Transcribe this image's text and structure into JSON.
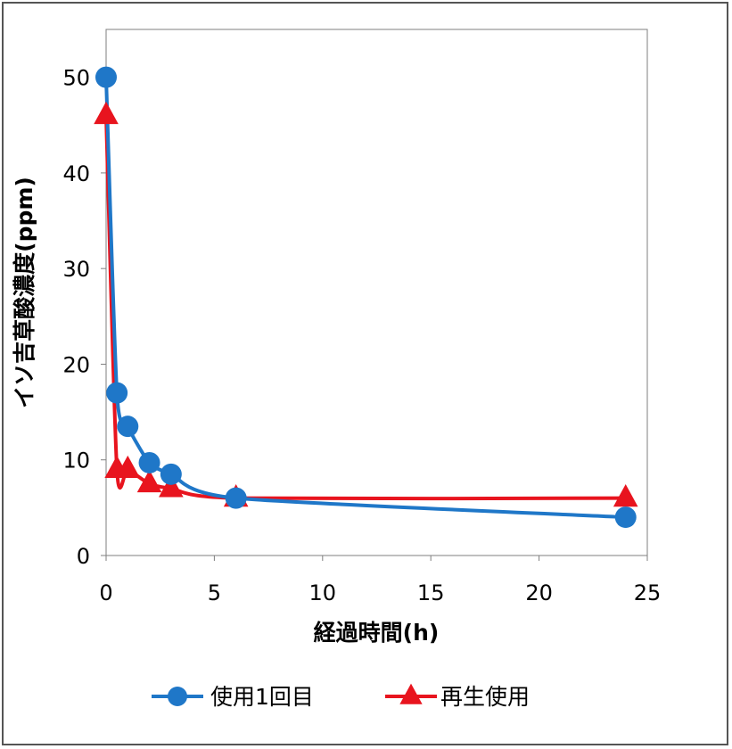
{
  "chart_data": {
    "type": "line",
    "xlabel": "経過時間(h)",
    "ylabel": "イソ吉草酸濃度(ppm)",
    "xlim": [
      0,
      25
    ],
    "ylim": [
      0,
      55
    ],
    "xticks": [
      0,
      5,
      10,
      15,
      20,
      25
    ],
    "yticks": [
      0,
      10,
      20,
      30,
      40,
      50
    ],
    "grid": false,
    "legend_position": "bottom",
    "series": [
      {
        "name": "使用1回目",
        "color": "#1f77c8",
        "marker": "circle",
        "x": [
          0,
          0.5,
          1,
          2,
          3,
          6,
          24
        ],
        "y": [
          50,
          17,
          13.5,
          9.7,
          8.5,
          6,
          4
        ]
      },
      {
        "name": "再生使用",
        "color": "#e8141e",
        "marker": "triangle",
        "x": [
          0,
          0.5,
          1,
          2,
          3,
          6,
          24
        ],
        "y": [
          46,
          9,
          9,
          7.5,
          7,
          6,
          6
        ]
      }
    ]
  }
}
